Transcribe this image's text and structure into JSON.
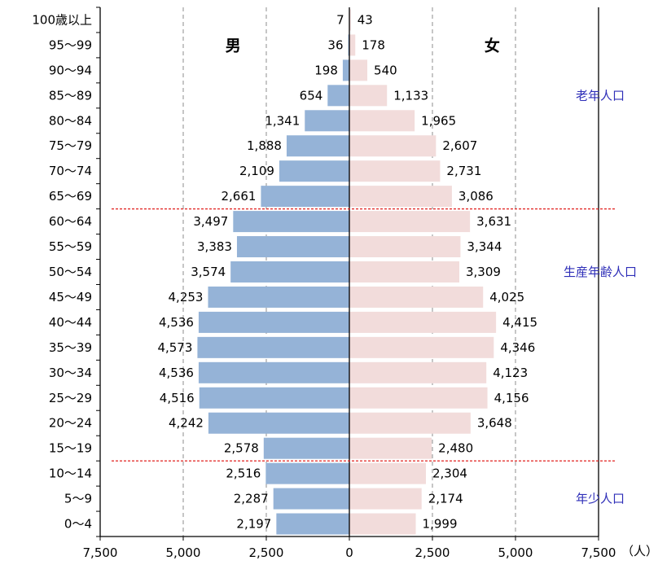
{
  "chart_data": {
    "type": "bar",
    "orientation": "horizontal",
    "layout": "population-pyramid",
    "title": "",
    "xlabel": "",
    "ylabel": "",
    "x_unit": "（人）",
    "xlim": [
      -7500,
      7500
    ],
    "x_ticks": [
      -7500,
      -5000,
      -2500,
      0,
      2500,
      5000,
      7500
    ],
    "x_tick_labels": [
      "7,500",
      "5,000",
      "2,500",
      "0",
      "2,500",
      "5,000",
      "7,500"
    ],
    "grid": "vertical-dashed",
    "legend": "none",
    "categories": [
      "100歳以上",
      "95〜99",
      "90〜94",
      "85〜89",
      "80〜84",
      "75〜79",
      "70〜74",
      "65〜69",
      "60〜64",
      "55〜59",
      "50〜54",
      "45〜49",
      "40〜44",
      "35〜39",
      "30〜34",
      "25〜29",
      "20〜24",
      "15〜19",
      "10〜14",
      "5〜9",
      "0〜4"
    ],
    "series": [
      {
        "name": "男",
        "side": "left",
        "color": "#95b3d7",
        "values": [
          7,
          36,
          198,
          654,
          1341,
          1888,
          2109,
          2661,
          3497,
          3383,
          3574,
          4253,
          4536,
          4573,
          4536,
          4516,
          4242,
          2578,
          2516,
          2287,
          2197
        ],
        "labels": [
          "7",
          "36",
          "198",
          "654",
          "1,341",
          "1,888",
          "2,109",
          "2,661",
          "3,497",
          "3,383",
          "3,574",
          "4,253",
          "4,536",
          "4,573",
          "4,536",
          "4,516",
          "4,242",
          "2,578",
          "2,516",
          "2,287",
          "2,197"
        ]
      },
      {
        "name": "女",
        "side": "right",
        "color": "#f2dcdb",
        "values": [
          43,
          178,
          540,
          1133,
          1965,
          2607,
          2731,
          3086,
          3631,
          3344,
          3309,
          4025,
          4415,
          4346,
          4123,
          4156,
          3648,
          2480,
          2304,
          2174,
          1999
        ],
        "labels": [
          "43",
          "178",
          "540",
          "1,133",
          "1,965",
          "2,607",
          "2,731",
          "3,086",
          "3,631",
          "3,344",
          "3,309",
          "4,025",
          "4,415",
          "4,346",
          "4,123",
          "4,156",
          "3,648",
          "2,480",
          "2,304",
          "2,174",
          "1,999"
        ]
      }
    ],
    "divider_color": "#e0201e",
    "dividers_after": [
      "65〜69",
      "15〜19"
    ],
    "zones": [
      {
        "label": "老年人口",
        "category": "85〜89"
      },
      {
        "label": "生産年齢人口",
        "category": "50〜54"
      },
      {
        "label": "年少人口",
        "category": "5〜9"
      }
    ],
    "zone_color": "#2e2eb8"
  }
}
